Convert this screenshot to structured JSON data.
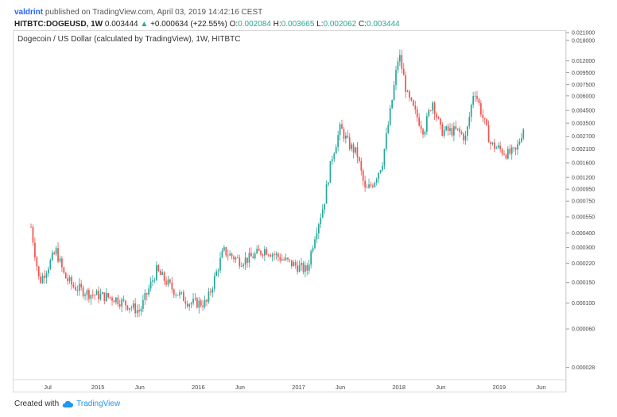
{
  "header": {
    "user": "valdrint",
    "published_text": "published on TradingView.com, April 03, 2019 14:42:16 CEST",
    "symbol": "HITBTC:DOGEUSD, 1W",
    "last": "0.003444",
    "change_arrow": "▲",
    "change": "+0.000634 (+22.55%)",
    "o_label": "O:",
    "o_value": "0.002084",
    "h_label": "H:",
    "h_value": "0.003665",
    "l_label": "L:",
    "l_value": "0.002062",
    "c_label": "C:",
    "c_value": "0.003444"
  },
  "chart_title": "Dogecoin / US Dollar (calculated by TradingView), 1W, HITBTC",
  "footer": {
    "created_with": "Created with",
    "brand": "TradingView"
  },
  "colors": {
    "up": "#26a69a",
    "down": "#ef5350",
    "axis_text": "#444444",
    "border": "#d8d8d8"
  },
  "chart_data": {
    "type": "line",
    "title": "Dogecoin / US Dollar (calculated by TradingView), 1W, HITBTC",
    "scale": "log",
    "ylim": [
      2.2e-05,
      0.021
    ],
    "y_ticks": [
      "0.021000",
      "0.018000",
      "0.012000",
      "0.009500",
      "0.007500",
      "0.006000",
      "0.004500",
      "0.003500",
      "0.002700",
      "0.002100",
      "0.001600",
      "0.001200",
      "0.000950",
      "0.000750",
      "0.000550",
      "0.000400",
      "0.000300",
      "0.000220",
      "0.000150",
      "0.000100",
      "0.000060",
      "0.000028"
    ],
    "x_ticks": [
      "Jul",
      "2015",
      "Jun",
      "2016",
      "Jun",
      "2017",
      "Jun",
      "2018",
      "Jun",
      "2019",
      "Jun"
    ],
    "x_tick_dates": [
      "2014-07",
      "2015-01",
      "2015-06",
      "2016-01",
      "2016-06",
      "2017-01",
      "2017-06",
      "2018-01",
      "2018-06",
      "2019-01",
      "2019-06"
    ],
    "series": [
      {
        "dates": [
          "2014-05",
          "2014-06",
          "2014-08",
          "2014-09",
          "2014-10",
          "2014-12",
          "2015-03",
          "2015-06",
          "2015-08",
          "2015-10",
          "2015-12",
          "2016-02",
          "2016-04",
          "2016-06",
          "2016-07",
          "2016-09",
          "2016-11",
          "2016-12",
          "2017-02",
          "2017-03",
          "2017-04",
          "2017-05",
          "2017-06",
          "2017-07",
          "2017-08",
          "2017-09",
          "2017-10",
          "2017-11",
          "2017-12",
          "2018-01",
          "2018-02",
          "2018-03",
          "2018-04",
          "2018-05",
          "2018-06",
          "2018-08",
          "2018-09",
          "2018-10",
          "2018-11",
          "2018-12",
          "2019-01",
          "2019-02",
          "2019-03",
          "2019-04"
        ],
        "values": [
          0.00045,
          0.00015,
          0.00028,
          0.00017,
          0.00014,
          0.00012,
          0.00011,
          8.5e-05,
          0.00019,
          0.00013,
          0.0001,
          0.0001,
          0.00028,
          0.00023,
          0.00024,
          0.00029,
          0.00024,
          0.00022,
          0.00019,
          0.0004,
          0.0007,
          0.0018,
          0.0032,
          0.0023,
          0.0019,
          0.0009,
          0.0011,
          0.0016,
          0.0045,
          0.014,
          0.006,
          0.0042,
          0.003,
          0.0055,
          0.003,
          0.003,
          0.0026,
          0.007,
          0.004,
          0.0023,
          0.0021,
          0.0019,
          0.002,
          0.0034
        ]
      }
    ]
  }
}
